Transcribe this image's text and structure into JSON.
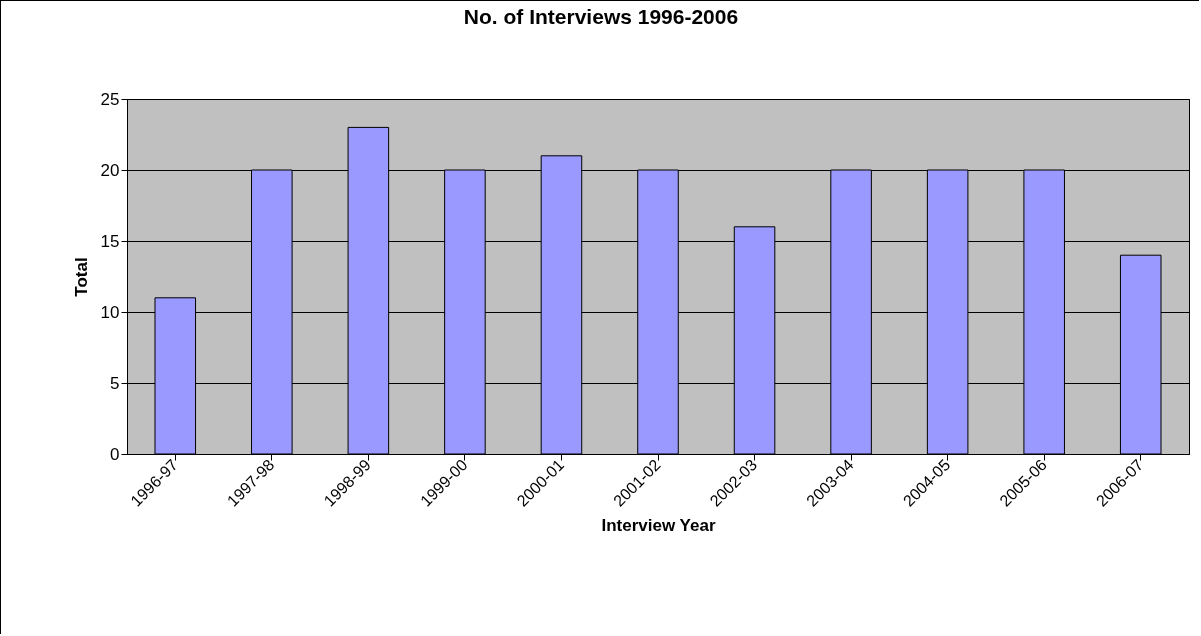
{
  "chart_data": {
    "type": "bar",
    "title": "No. of Interviews 1996-2006",
    "xlabel": "Interview Year",
    "ylabel": "Total",
    "categories": [
      "1996-97",
      "1997-98",
      "1998-99",
      "1999-00",
      "2000-01",
      "2001-02",
      "2002-03",
      "2003-04",
      "2004-05",
      "2005-06",
      "2006-07"
    ],
    "values": [
      11,
      20,
      23,
      20,
      21,
      20,
      16,
      20,
      20,
      20,
      14
    ],
    "color": "#9999ff",
    "ylim": [
      0,
      25
    ],
    "yticks": [
      0,
      5,
      10,
      15,
      20,
      25
    ],
    "grid": "y"
  }
}
